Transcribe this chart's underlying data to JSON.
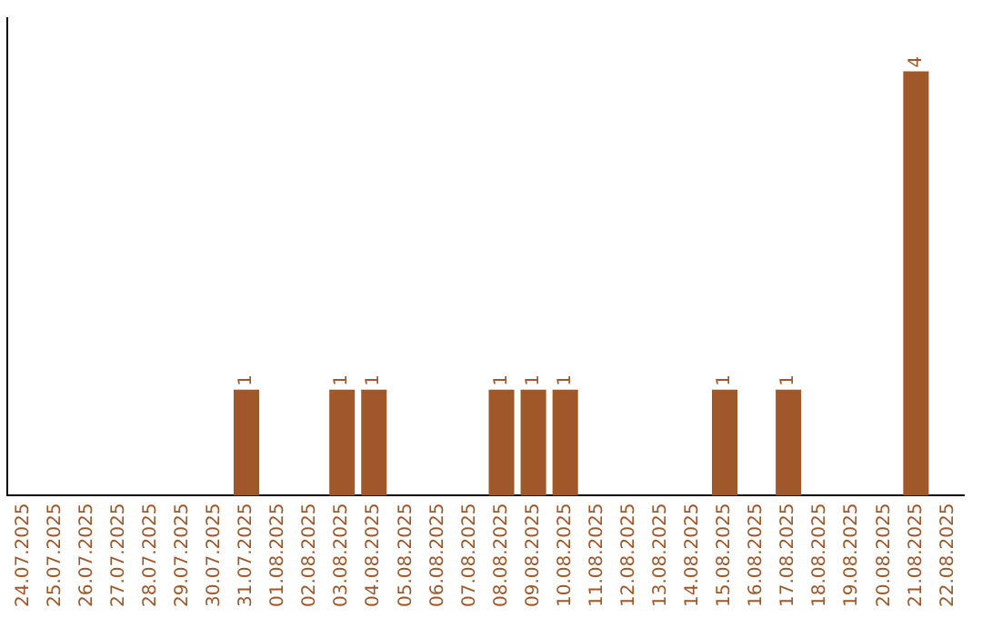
{
  "chart_data": {
    "type": "bar",
    "categories": [
      "24.07.2025",
      "25.07.2025",
      "26.07.2025",
      "27.07.2025",
      "28.07.2025",
      "29.07.2025",
      "30.07.2025",
      "31.07.2025",
      "01.08.2025",
      "02.08.2025",
      "03.08.2025",
      "04.08.2025",
      "05.08.2025",
      "06.08.2025",
      "07.08.2025",
      "08.08.2025",
      "09.08.2025",
      "10.08.2025",
      "11.08.2025",
      "12.08.2025",
      "13.08.2025",
      "14.08.2025",
      "15.08.2025",
      "16.08.2025",
      "17.08.2025",
      "18.08.2025",
      "19.08.2025",
      "20.08.2025",
      "21.08.2025",
      "22.08.2025"
    ],
    "values": [
      0,
      0,
      0,
      0,
      0,
      0,
      0,
      1,
      0,
      0,
      1,
      1,
      0,
      0,
      0,
      1,
      1,
      1,
      0,
      0,
      0,
      0,
      1,
      0,
      1,
      0,
      0,
      0,
      4,
      0
    ],
    "value_labels": [
      null,
      null,
      null,
      null,
      null,
      null,
      null,
      "1",
      null,
      null,
      "1",
      "1",
      null,
      null,
      null,
      "1",
      "1",
      "1",
      null,
      null,
      null,
      null,
      "1",
      null,
      "1",
      null,
      null,
      null,
      "4",
      null
    ],
    "color": "#a0582a",
    "grid": false,
    "legend": false,
    "tick_labels": "x"
  }
}
